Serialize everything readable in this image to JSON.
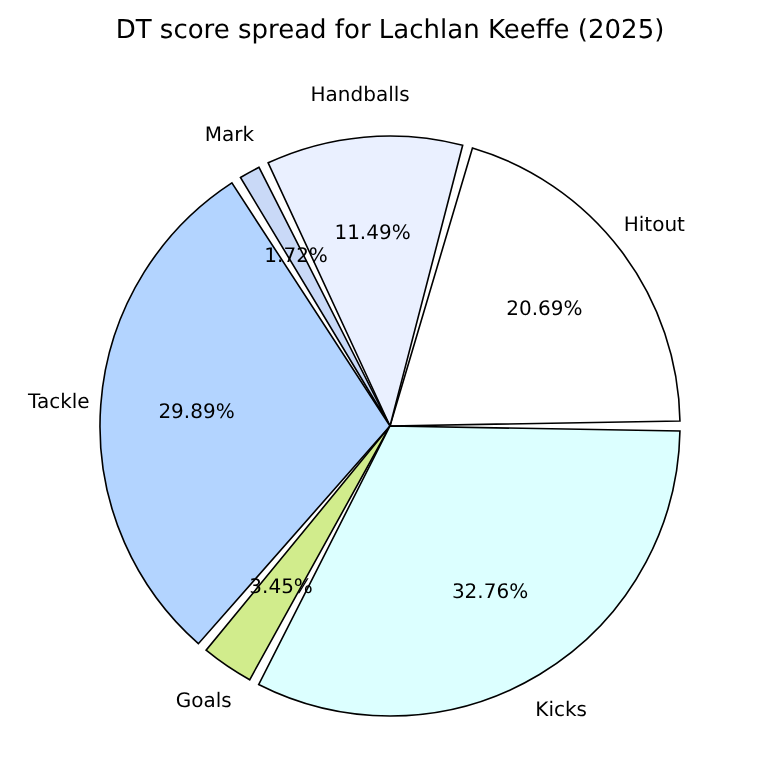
{
  "chart_data": {
    "type": "pie",
    "title": "DT score spread for Lachlan Keeffe (2025)",
    "categories": [
      "Hitout",
      "Handballs",
      "Mark",
      "Tackle",
      "Goals",
      "Kicks"
    ],
    "values": [
      20.69,
      11.49,
      1.72,
      29.89,
      3.45,
      32.76
    ],
    "value_labels": [
      "20.69%",
      "11.49%",
      "1.72%",
      "29.89%",
      "3.45%",
      "32.76%"
    ],
    "colors": [
      "#ffffff",
      "#eaf0ff",
      "#c9d9f7",
      "#b3d4ff",
      "#d1ec8c",
      "#dcffff"
    ]
  }
}
